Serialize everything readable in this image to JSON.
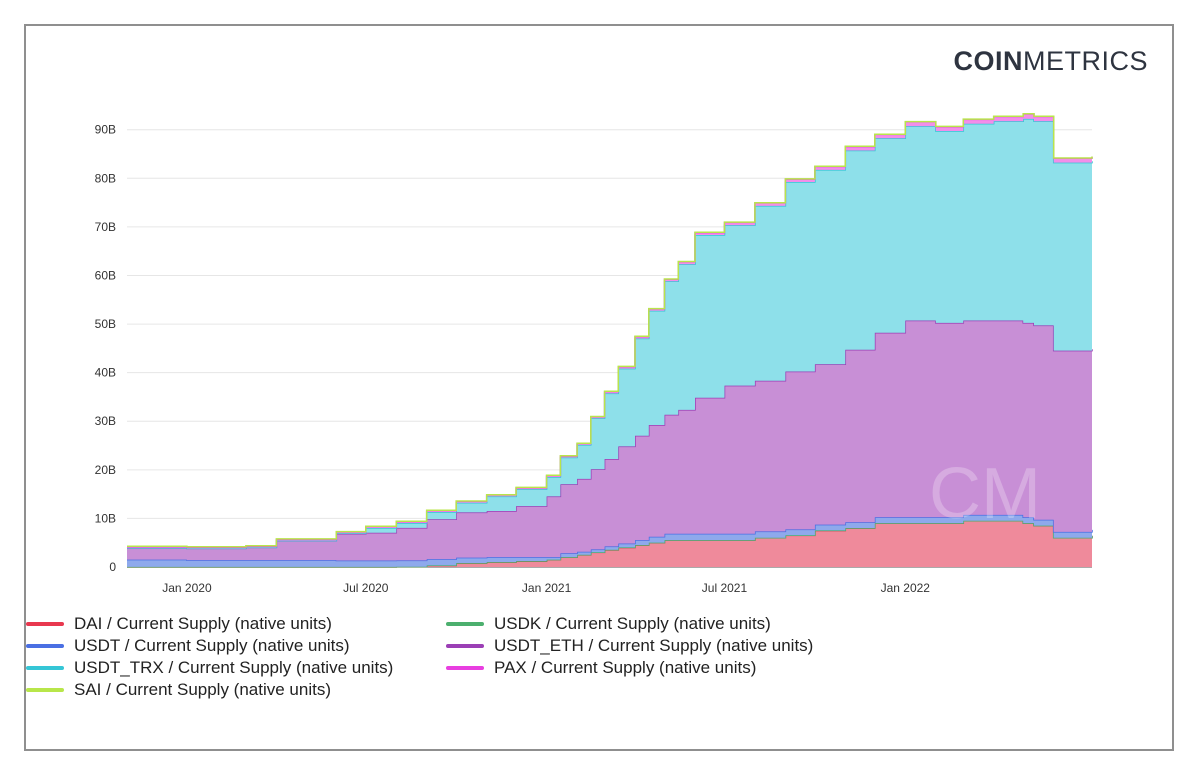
{
  "logo": {
    "bold": "COIN",
    "light": "METRICS"
  },
  "watermark": "CM",
  "chart_data": {
    "type": "area",
    "stacked": true,
    "ylim": [
      0,
      92000000000
    ],
    "ytick_labels": [
      "0",
      "10B",
      "20B",
      "30B",
      "40B",
      "50B",
      "60B",
      "70B",
      "80B",
      "90B"
    ],
    "ytick_values": [
      0,
      10000000000,
      20000000000,
      30000000000,
      40000000000,
      50000000000,
      60000000000,
      70000000000,
      80000000000,
      90000000000
    ],
    "xlim": [
      "2019-11-01",
      "2022-07-10"
    ],
    "xtick_labels": [
      "Jan 2020",
      "Jul 2020",
      "Jan 2021",
      "Jul 2021",
      "Jan 2022"
    ],
    "xtick_values": [
      "2020-01-01",
      "2020-07-01",
      "2021-01-01",
      "2021-07-01",
      "2022-01-01"
    ],
    "grid": true,
    "legend_position": "bottom",
    "x": [
      "2019-11-01",
      "2020-01-01",
      "2020-03-01",
      "2020-04-01",
      "2020-06-01",
      "2020-07-01",
      "2020-08-01",
      "2020-09-01",
      "2020-10-01",
      "2020-11-01",
      "2020-12-01",
      "2021-01-01",
      "2021-01-15",
      "2021-02-01",
      "2021-02-15",
      "2021-03-01",
      "2021-03-15",
      "2021-04-01",
      "2021-04-15",
      "2021-05-01",
      "2021-05-15",
      "2021-06-01",
      "2021-07-01",
      "2021-08-01",
      "2021-09-01",
      "2021-10-01",
      "2021-11-01",
      "2021-12-01",
      "2022-01-01",
      "2022-02-01",
      "2022-03-01",
      "2022-04-01",
      "2022-05-01",
      "2022-05-12",
      "2022-06-01",
      "2022-07-10"
    ],
    "series": [
      {
        "name": "DAI / Current Supply (native units)",
        "color": "#e8384f",
        "fill": "#ef8a9b",
        "values": [
          0,
          0,
          0,
          0,
          0,
          0,
          0.02,
          0.3,
          0.8,
          1.0,
          1.2,
          1.5,
          2.0,
          2.5,
          3.0,
          3.5,
          4.0,
          4.5,
          5.0,
          5.5,
          5.5,
          5.5,
          5.5,
          6.0,
          6.5,
          7.5,
          8.0,
          9.0,
          9.0,
          9.0,
          9.5,
          9.5,
          9.0,
          8.5,
          6.0,
          6.4
        ]
      },
      {
        "name": "USDK / Current Supply (native units)",
        "color": "#4caf6e",
        "fill": "#4caf6e",
        "values": [
          0.03,
          0.03,
          0.03,
          0.03,
          0.03,
          0.03,
          0.03,
          0.03,
          0.03,
          0.03,
          0.03,
          0.03,
          0.03,
          0.03,
          0.03,
          0.03,
          0.03,
          0.03,
          0.03,
          0.03,
          0.03,
          0.03,
          0.03,
          0.03,
          0.03,
          0.03,
          0.03,
          0.03,
          0.03,
          0.03,
          0.03,
          0.03,
          0.03,
          0.03,
          0.03,
          0.03
        ]
      },
      {
        "name": "USDT / Current Supply (native units)",
        "color": "#4a6fe3",
        "fill": "#8ea9ec",
        "values": [
          1.5,
          1.4,
          1.4,
          1.4,
          1.3,
          1.3,
          1.3,
          1.3,
          1.1,
          1.0,
          0.8,
          0.5,
          0.8,
          0.6,
          0.6,
          0.7,
          0.8,
          1.0,
          1.2,
          1.3,
          1.3,
          1.3,
          1.3,
          1.3,
          1.2,
          1.2,
          1.2,
          1.2,
          1.2,
          1.2,
          1.2,
          1.2,
          1.2,
          1.2,
          1.2,
          1.2
        ]
      },
      {
        "name": "USDT_ETH / Current Supply (native units)",
        "color": "#9b3fb5",
        "fill": "#c88fd6",
        "values": [
          2.4,
          2.4,
          2.6,
          4.0,
          5.5,
          5.7,
          6.7,
          8.2,
          9.3,
          9.5,
          10.5,
          12.5,
          14.2,
          15.0,
          16.5,
          18.0,
          20.0,
          21.5,
          23.0,
          24.5,
          25.5,
          28.0,
          30.5,
          31.0,
          32.5,
          33.0,
          35.5,
          38.0,
          40.5,
          40.0,
          40.0,
          40.0,
          40.0,
          40.0,
          37.3,
          37.2
        ]
      },
      {
        "name": "USDT_TRX / Current Supply (native units)",
        "color": "#35c6d6",
        "fill": "#8ee0ea",
        "values": [
          0,
          0,
          0,
          0,
          0.1,
          1.0,
          1.0,
          1.5,
          2.0,
          3.0,
          3.5,
          4.0,
          5.5,
          7.0,
          10.5,
          13.5,
          16.0,
          20.0,
          23.5,
          27.5,
          30.0,
          33.5,
          33.0,
          36.0,
          39.0,
          40.0,
          41.0,
          40.0,
          40.0,
          39.5,
          40.5,
          41.0,
          42.0,
          42.0,
          38.7,
          38.7
        ]
      },
      {
        "name": "PAX / Current Supply (native units)",
        "color": "#e83ee0",
        "fill": "#f28ee9",
        "values": [
          0.23,
          0.23,
          0.24,
          0.25,
          0.3,
          0.3,
          0.3,
          0.3,
          0.3,
          0.3,
          0.3,
          0.3,
          0.3,
          0.3,
          0.3,
          0.4,
          0.4,
          0.4,
          0.4,
          0.4,
          0.5,
          0.5,
          0.6,
          0.6,
          0.6,
          0.7,
          0.8,
          0.8,
          0.9,
          0.9,
          0.9,
          1.0,
          1.0,
          1.0,
          0.9,
          0.9
        ]
      },
      {
        "name": "SAI / Current Supply (native units)",
        "color": "#b8e64a",
        "fill": "#b8e64a",
        "values": [
          0.1,
          0.1,
          0.1,
          0.1,
          0.05,
          0.05,
          0.05,
          0.05,
          0.05,
          0.05,
          0.05,
          0.05,
          0.05,
          0.05,
          0.05,
          0.05,
          0.05,
          0.05,
          0.05,
          0.05,
          0.05,
          0.05,
          0.05,
          0.05,
          0.05,
          0.05,
          0.05,
          0.05,
          0.05,
          0.05,
          0.05,
          0.05,
          0.05,
          0.05,
          0.05,
          0.05
        ]
      }
    ],
    "value_unit_multiplier": 1000000000
  },
  "legend": [
    {
      "label": "DAI / Current Supply (native units)",
      "color": "#e8384f"
    },
    {
      "label": "USDK / Current Supply (native units)",
      "color": "#4caf6e"
    },
    {
      "label": "USDT / Current Supply (native units)",
      "color": "#4a6fe3"
    },
    {
      "label": "USDT_ETH / Current Supply (native units)",
      "color": "#9b3fb5"
    },
    {
      "label": "USDT_TRX / Current Supply (native units)",
      "color": "#35c6d6"
    },
    {
      "label": "PAX / Current Supply (native units)",
      "color": "#e83ee0"
    },
    {
      "label": "SAI / Current Supply (native units)",
      "color": "#b8e64a"
    }
  ]
}
